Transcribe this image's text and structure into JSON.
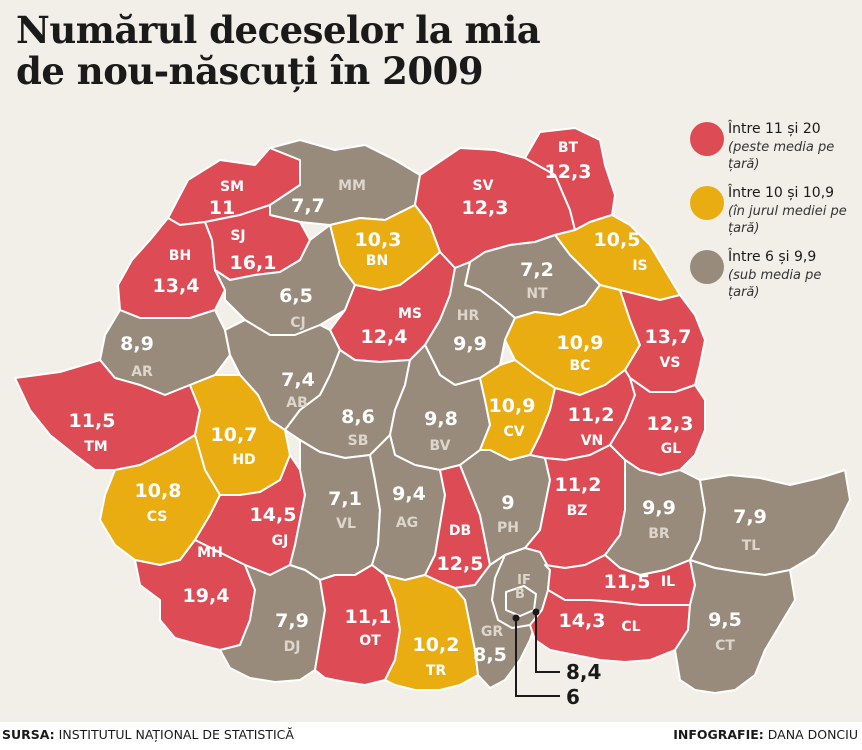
{
  "title": {
    "line1": "Numărul deceselor la mia",
    "line2": "de nou-născuți în 2009"
  },
  "legend": [
    {
      "label": "Între 11 și 20",
      "note": "(peste media pe țară)",
      "color": "#dd4b55"
    },
    {
      "label": "Între 10 și 10,9",
      "note": "(în jurul mediei pe țară)",
      "color": "#e9ad12"
    },
    {
      "label": "Între 6 și 9,9",
      "note": "(sub media pe țară)",
      "color": "#998b7c"
    }
  ],
  "colors": {
    "red": "#dd4b55",
    "yellow": "#e9ad12",
    "gray": "#998b7c",
    "background": "#f2efe8",
    "border": "#ffffff"
  },
  "counties": [
    {
      "code": "SM",
      "value": "11",
      "category": "red"
    },
    {
      "code": "MM",
      "value": "7,7",
      "category": "gray"
    },
    {
      "code": "SV",
      "value": "12,3",
      "category": "red"
    },
    {
      "code": "BT",
      "value": "12,3",
      "category": "red"
    },
    {
      "code": "BH",
      "value": "13,4",
      "category": "red"
    },
    {
      "code": "SJ",
      "value": "16,1",
      "category": "red"
    },
    {
      "code": "BN",
      "value": "10,3",
      "category": "yellow"
    },
    {
      "code": "IS",
      "value": "10,5",
      "category": "yellow"
    },
    {
      "code": "CJ",
      "value": "6,5",
      "category": "gray"
    },
    {
      "code": "NT",
      "value": "7,2",
      "category": "gray"
    },
    {
      "code": "MS",
      "value": "12,4",
      "category": "red"
    },
    {
      "code": "HR",
      "value": "9,9",
      "category": "gray"
    },
    {
      "code": "AR",
      "value": "8,9",
      "category": "gray"
    },
    {
      "code": "BC",
      "value": "10,9",
      "category": "yellow"
    },
    {
      "code": "VS",
      "value": "13,7",
      "category": "red"
    },
    {
      "code": "AB",
      "value": "7,4",
      "category": "gray"
    },
    {
      "code": "TM",
      "value": "11,5",
      "category": "red"
    },
    {
      "code": "HD",
      "value": "10,7",
      "category": "yellow"
    },
    {
      "code": "SB",
      "value": "8,6",
      "category": "gray"
    },
    {
      "code": "BV",
      "value": "9,8",
      "category": "gray"
    },
    {
      "code": "CV",
      "value": "10,9",
      "category": "yellow"
    },
    {
      "code": "VN",
      "value": "11,2",
      "category": "red"
    },
    {
      "code": "GL",
      "value": "12,3",
      "category": "red"
    },
    {
      "code": "CS",
      "value": "10,8",
      "category": "yellow"
    },
    {
      "code": "GJ",
      "value": "14,5",
      "category": "red"
    },
    {
      "code": "VL",
      "value": "7,1",
      "category": "gray"
    },
    {
      "code": "AG",
      "value": "9,4",
      "category": "gray"
    },
    {
      "code": "DB",
      "value": "12,5",
      "category": "red"
    },
    {
      "code": "PH",
      "value": "9",
      "category": "gray"
    },
    {
      "code": "BZ",
      "value": "11,2",
      "category": "red"
    },
    {
      "code": "BR",
      "value": "9,9",
      "category": "gray"
    },
    {
      "code": "TL",
      "value": "7,9",
      "category": "gray"
    },
    {
      "code": "MH",
      "value": "19,4",
      "category": "red"
    },
    {
      "code": "DJ",
      "value": "7,9",
      "category": "gray"
    },
    {
      "code": "OT",
      "value": "11,1",
      "category": "red"
    },
    {
      "code": "TR",
      "value": "10,2",
      "category": "yellow"
    },
    {
      "code": "GR",
      "value": "8,5",
      "category": "gray"
    },
    {
      "code": "IF",
      "value": "8,4",
      "category": "gray"
    },
    {
      "code": "B",
      "value": "6",
      "category": "gray"
    },
    {
      "code": "IL",
      "value": "11,5",
      "category": "red"
    },
    {
      "code": "CL",
      "value": "14,3",
      "category": "red"
    },
    {
      "code": "CT",
      "value": "9,5",
      "category": "gray"
    }
  ],
  "footer": {
    "source_label": "SURSA:",
    "source_text": "INSTITUTUL NAȚIONAL DE STATISTICĂ",
    "credit_label": "INFOGRAFIE:",
    "credit_text": "DANA DONCIU"
  }
}
